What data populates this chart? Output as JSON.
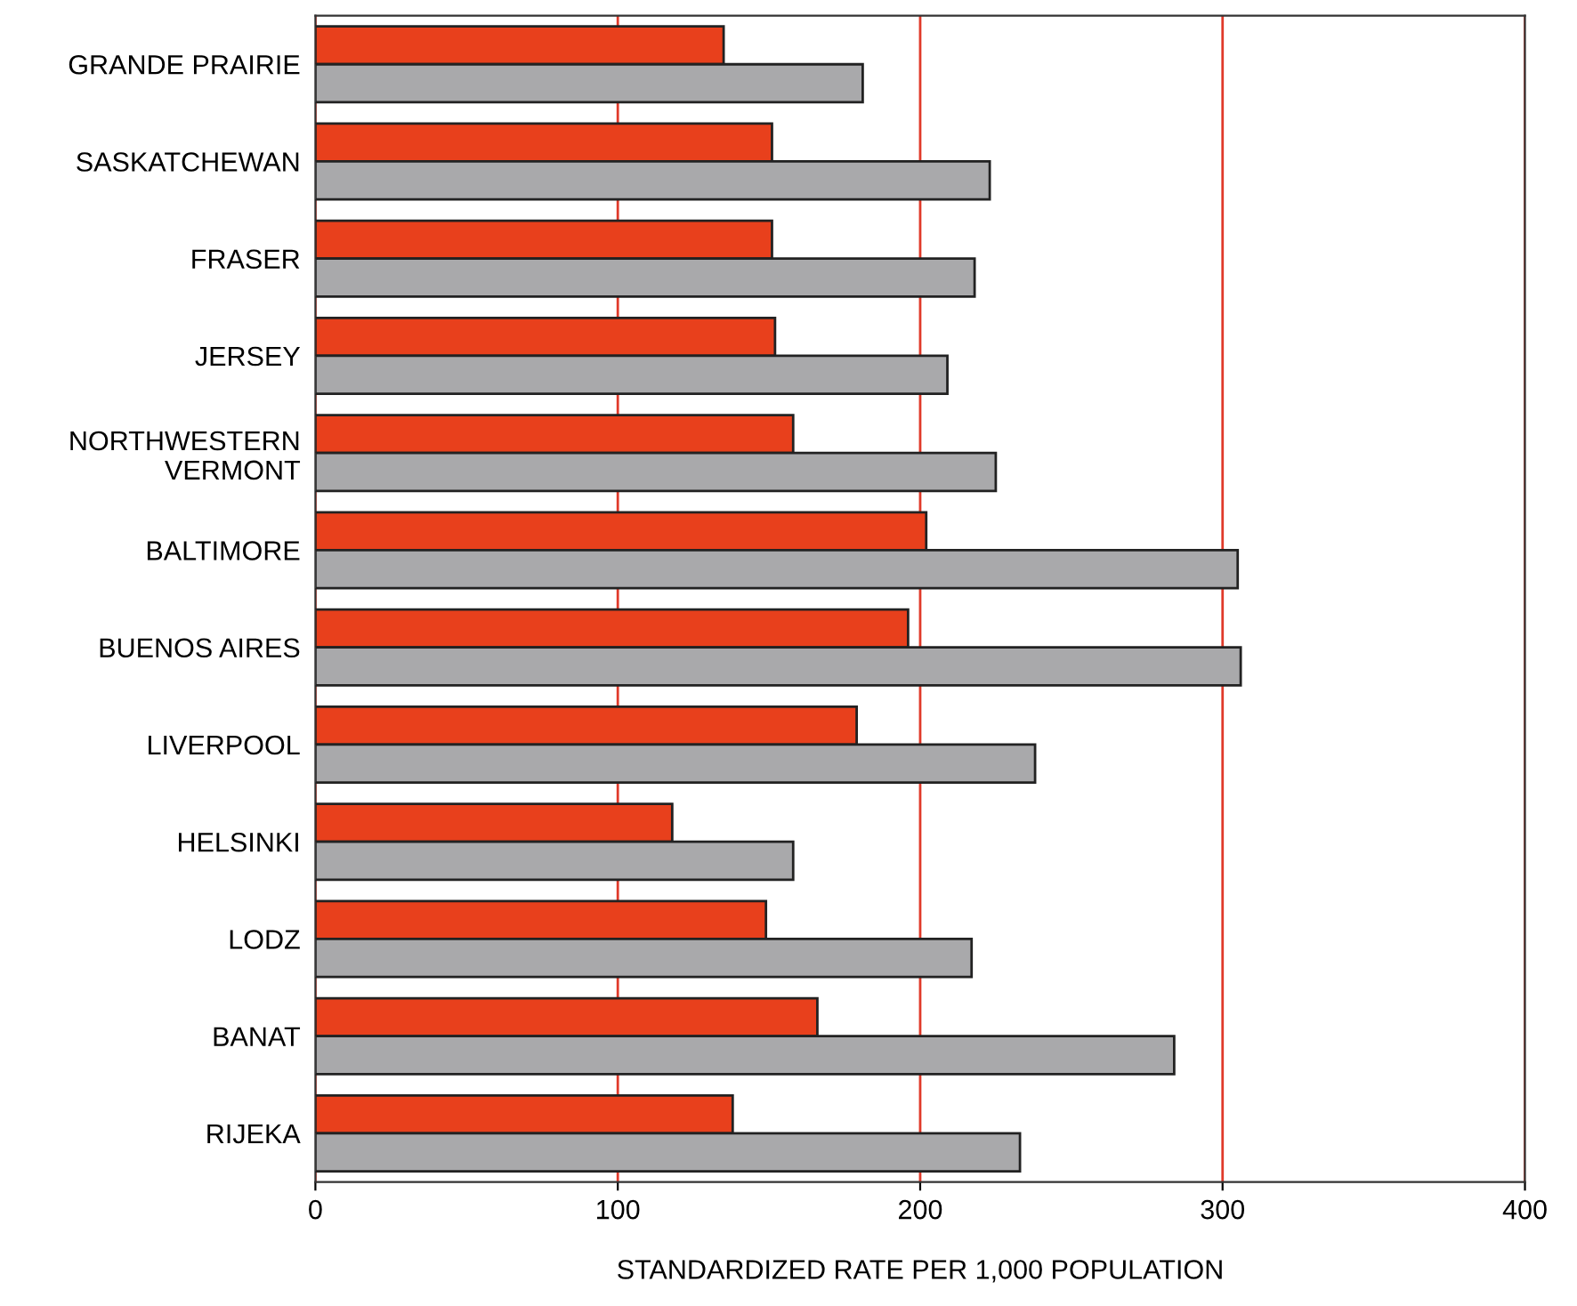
{
  "chart_data": {
    "type": "bar",
    "orientation": "horizontal",
    "xlabel": "STANDARDIZED RATE PER 1,000 POPULATION",
    "categories": [
      "GRANDE PRAIRIE",
      "SASKATCHEWAN",
      "FRASER",
      "JERSEY",
      "NORTHWESTERN\nVERMONT",
      "BALTIMORE",
      "BUENOS AIRES",
      "LIVERPOOL",
      "HELSINKI",
      "LODZ",
      "BANAT",
      "RIJEKA"
    ],
    "series": [
      {
        "color": "#e8401c",
        "values": [
          135,
          151,
          151,
          152,
          158,
          202,
          196,
          179,
          118,
          149,
          166,
          138
        ]
      },
      {
        "color": "#a9a9ab",
        "values": [
          181,
          223,
          218,
          209,
          225,
          305,
          306,
          238,
          158,
          217,
          284,
          233
        ]
      }
    ],
    "xlim": [
      0,
      400
    ],
    "xticks": [
      0,
      100,
      200,
      300,
      400
    ],
    "grid": "x",
    "legend": false
  }
}
